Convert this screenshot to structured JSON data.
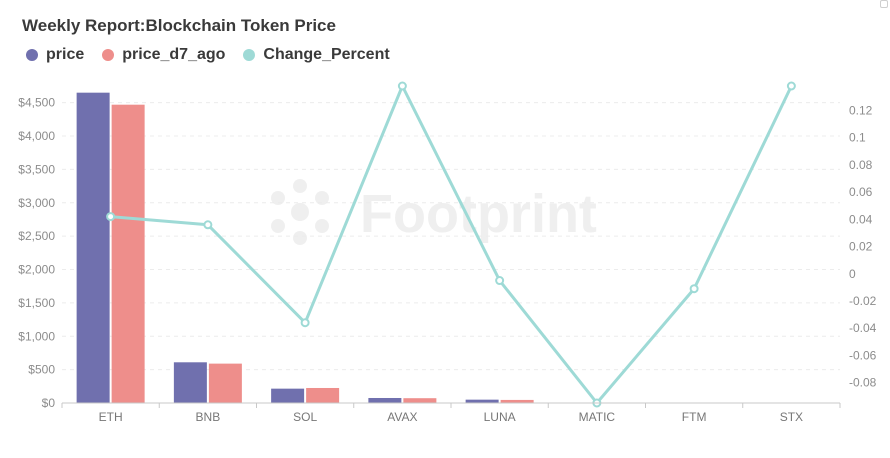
{
  "chart_data": {
    "type": "bar",
    "title": "Weekly Report:Blockchain Token Price",
    "categories": [
      "ETH",
      "BNB",
      "SOL",
      "AVAX",
      "LUNA",
      "MATIC",
      "FTM",
      "STX"
    ],
    "series": [
      {
        "name": "price",
        "type": "bar",
        "axis": "left",
        "color": "#7070ae",
        "values": [
          4650,
          610,
          215,
          75,
          50,
          2,
          1.5,
          2
        ]
      },
      {
        "name": "price_d7_ago",
        "type": "bar",
        "axis": "left",
        "color": "#ee8e8b",
        "values": [
          4470,
          590,
          225,
          72,
          46,
          2,
          1.5,
          1.8
        ]
      },
      {
        "name": "Change_Percent",
        "type": "line",
        "axis": "right",
        "color": "#9edad6",
        "values": [
          0.042,
          0.036,
          -0.036,
          0.138,
          -0.005,
          -0.095,
          -0.011,
          0.138
        ]
      }
    ],
    "y_left": {
      "ylim": [
        0,
        4750
      ],
      "ticks": [
        "$0",
        "$500",
        "$1,000",
        "$1,500",
        "$2,000",
        "$2,500",
        "$3,000",
        "$3,500",
        "$4,000",
        "$4,500"
      ],
      "tick_values": [
        0,
        500,
        1000,
        1500,
        2000,
        2500,
        3000,
        3500,
        4000,
        4500
      ]
    },
    "y_right": {
      "ylim": [
        -0.095,
        0.138
      ],
      "ticks": [
        "-0.08",
        "-0.06",
        "-0.04",
        "-0.02",
        "0",
        "0.02",
        "0.04",
        "0.06",
        "0.08",
        "0.1",
        "0.12"
      ],
      "tick_values": [
        -0.08,
        -0.06,
        -0.04,
        -0.02,
        0,
        0.02,
        0.04,
        0.06,
        0.08,
        0.1,
        0.12
      ]
    },
    "legend_position": "top-left",
    "grid": true,
    "watermark": "Footprint"
  }
}
